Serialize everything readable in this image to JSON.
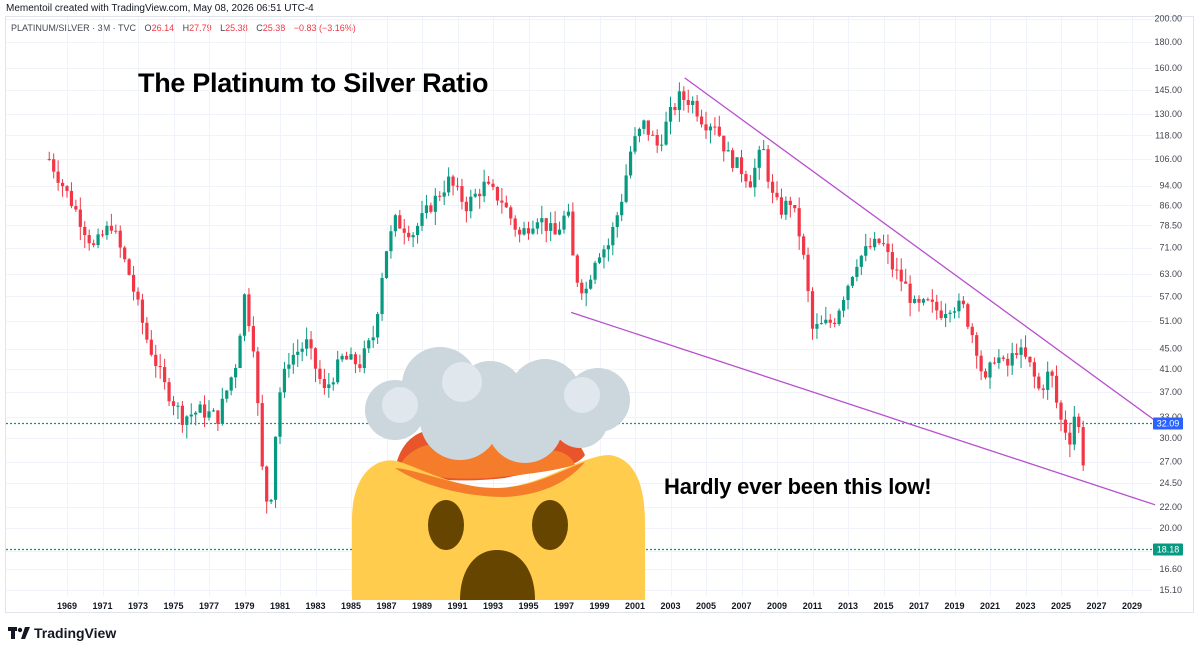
{
  "header": {
    "credit": "Mementoil created with TradingView.com, May 08, 2026 06:51 UTC-4",
    "symbol": "PLATINUM/SILVER · 3M · TVC",
    "ohlc": [
      {
        "k": "O",
        "v": "26.14"
      },
      {
        "k": "H",
        "v": "27.79"
      },
      {
        "k": "L",
        "v": "25.38"
      },
      {
        "k": "C",
        "v": "25.38"
      }
    ],
    "change": "−0.83 (−3.16%)"
  },
  "annotations": {
    "title": "The Platinum to Silver Ratio",
    "note": "Hardly ever been this low!"
  },
  "brand": {
    "name": "TradingView"
  },
  "colors": {
    "up": "#089981",
    "down": "#f23645",
    "trend": "#b84fd0",
    "hline": "#089981",
    "tag_blue": "#2962ff",
    "tag_teal": "#089981"
  },
  "chart_data": {
    "type": "candlestick",
    "y_scale": "log",
    "y_ticks": [
      "200.00",
      "180.00",
      "160.00",
      "145.00",
      "130.00",
      "118.00",
      "106.00",
      "94.00",
      "86.00",
      "78.50",
      "71.00",
      "63.00",
      "57.00",
      "51.00",
      "45.00",
      "41.00",
      "37.00",
      "33.00",
      "30.00",
      "27.00",
      "24.50",
      "22.00",
      "20.00",
      "18.00",
      "16.60",
      "15.10"
    ],
    "x_ticks": [
      "1969",
      "1971",
      "1973",
      "1975",
      "1977",
      "1979",
      "1981",
      "1983",
      "1985",
      "1987",
      "1989",
      "1991",
      "1993",
      "1995",
      "1997",
      "1999",
      "2001",
      "2003",
      "2005",
      "2007",
      "2009",
      "2011",
      "2013",
      "2015",
      "2017",
      "2019",
      "2021",
      "2023",
      "2025",
      "2027",
      "2029"
    ],
    "price_levels": [
      {
        "value": 32.09,
        "label": "32.09",
        "color": "#2962ff"
      },
      {
        "value": 18.18,
        "label": "18.18",
        "color": "#089981"
      }
    ],
    "trendlines": [
      {
        "from": [
          2003.8,
          153
        ],
        "to": [
          2030.3,
          32.5
        ]
      },
      {
        "from": [
          1997.4,
          53
        ],
        "to": [
          2030.3,
          22.2
        ]
      }
    ],
    "series": [
      [
        1968.0,
        106
      ],
      [
        1969.5,
        84
      ],
      [
        1970.5,
        71
      ],
      [
        1971.5,
        79
      ],
      [
        1972.5,
        63
      ],
      [
        1973.5,
        47
      ],
      [
        1974.5,
        38
      ],
      [
        1975.5,
        33
      ],
      [
        1976.5,
        34
      ],
      [
        1977.5,
        33
      ],
      [
        1978.5,
        42
      ],
      [
        1979.0,
        57
      ],
      [
        1979.5,
        46
      ],
      [
        1980.0,
        26
      ],
      [
        1980.4,
        21
      ],
      [
        1980.9,
        36
      ],
      [
        1981.5,
        43
      ],
      [
        1982.5,
        46
      ],
      [
        1983.5,
        37
      ],
      [
        1984.5,
        43
      ],
      [
        1985.5,
        42
      ],
      [
        1986.3,
        48
      ],
      [
        1986.9,
        69
      ],
      [
        1987.5,
        80
      ],
      [
        1988.5,
        76
      ],
      [
        1989.5,
        86
      ],
      [
        1990.5,
        96
      ],
      [
        1991.5,
        86
      ],
      [
        1992.5,
        94
      ],
      [
        1993.5,
        88
      ],
      [
        1994.5,
        75
      ],
      [
        1995.5,
        82
      ],
      [
        1996.5,
        75
      ],
      [
        1997.2,
        84
      ],
      [
        1997.6,
        63
      ],
      [
        1998.2,
        58
      ],
      [
        1998.8,
        69
      ],
      [
        1999.5,
        72
      ],
      [
        2000.2,
        87
      ],
      [
        2000.8,
        112
      ],
      [
        2001.5,
        124
      ],
      [
        2002.3,
        112
      ],
      [
        2002.9,
        128
      ],
      [
        2003.5,
        140
      ],
      [
        2004.2,
        138
      ],
      [
        2004.9,
        125
      ],
      [
        2005.5,
        125
      ],
      [
        2006.2,
        108
      ],
      [
        2006.9,
        102
      ],
      [
        2007.5,
        96
      ],
      [
        2008.2,
        112
      ],
      [
        2008.7,
        90
      ],
      [
        2009.2,
        84
      ],
      [
        2009.8,
        88
      ],
      [
        2010.4,
        72
      ],
      [
        2011.0,
        49
      ],
      [
        2011.6,
        50
      ],
      [
        2012.2,
        51
      ],
      [
        2012.8,
        58
      ],
      [
        2013.5,
        67
      ],
      [
        2014.2,
        71
      ],
      [
        2014.9,
        73
      ],
      [
        2015.5,
        65
      ],
      [
        2016.2,
        60
      ],
      [
        2016.8,
        54
      ],
      [
        2017.5,
        55
      ],
      [
        2018.2,
        53
      ],
      [
        2018.8,
        55
      ],
      [
        2019.5,
        54
      ],
      [
        2020.2,
        46
      ],
      [
        2020.7,
        38
      ],
      [
        2021.3,
        44
      ],
      [
        2021.9,
        41
      ],
      [
        2022.5,
        45
      ],
      [
        2023.2,
        42
      ],
      [
        2023.8,
        37
      ],
      [
        2024.4,
        41
      ],
      [
        2024.9,
        33
      ],
      [
        2025.5,
        30
      ],
      [
        2025.8,
        34
      ],
      [
        2026.1,
        30
      ],
      [
        2026.35,
        25.4
      ]
    ]
  }
}
